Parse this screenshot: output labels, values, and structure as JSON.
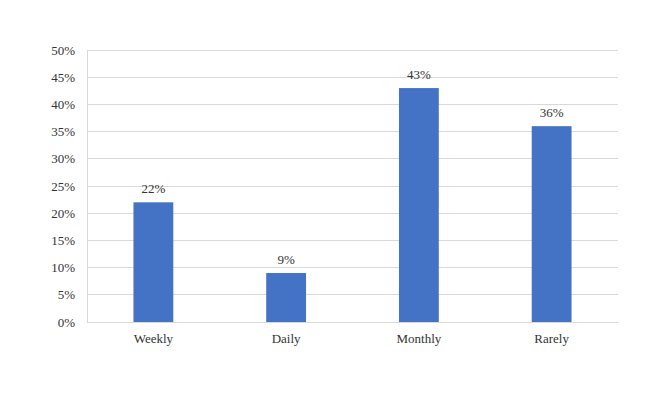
{
  "chart_data": {
    "type": "bar",
    "categories": [
      "Weekly",
      "Daily",
      "Monthly",
      "Rarely"
    ],
    "values": [
      22,
      9,
      43,
      36
    ],
    "value_labels": [
      "22%",
      "9%",
      "43%",
      "36%"
    ],
    "data_labels": true,
    "color": "#4472c4",
    "ylim": [
      0,
      50
    ],
    "yticks": [
      {
        "value": 0,
        "label": "0%"
      },
      {
        "value": 5,
        "label": "5%"
      },
      {
        "value": 10,
        "label": "10%"
      },
      {
        "value": 15,
        "label": "15%"
      },
      {
        "value": 20,
        "label": "20%"
      },
      {
        "value": 25,
        "label": "25%"
      },
      {
        "value": 30,
        "label": "30%"
      },
      {
        "value": 35,
        "label": "35%"
      },
      {
        "value": 40,
        "label": "40%"
      },
      {
        "value": 45,
        "label": "45%"
      },
      {
        "value": 50,
        "label": "50%"
      }
    ],
    "grid": true
  }
}
